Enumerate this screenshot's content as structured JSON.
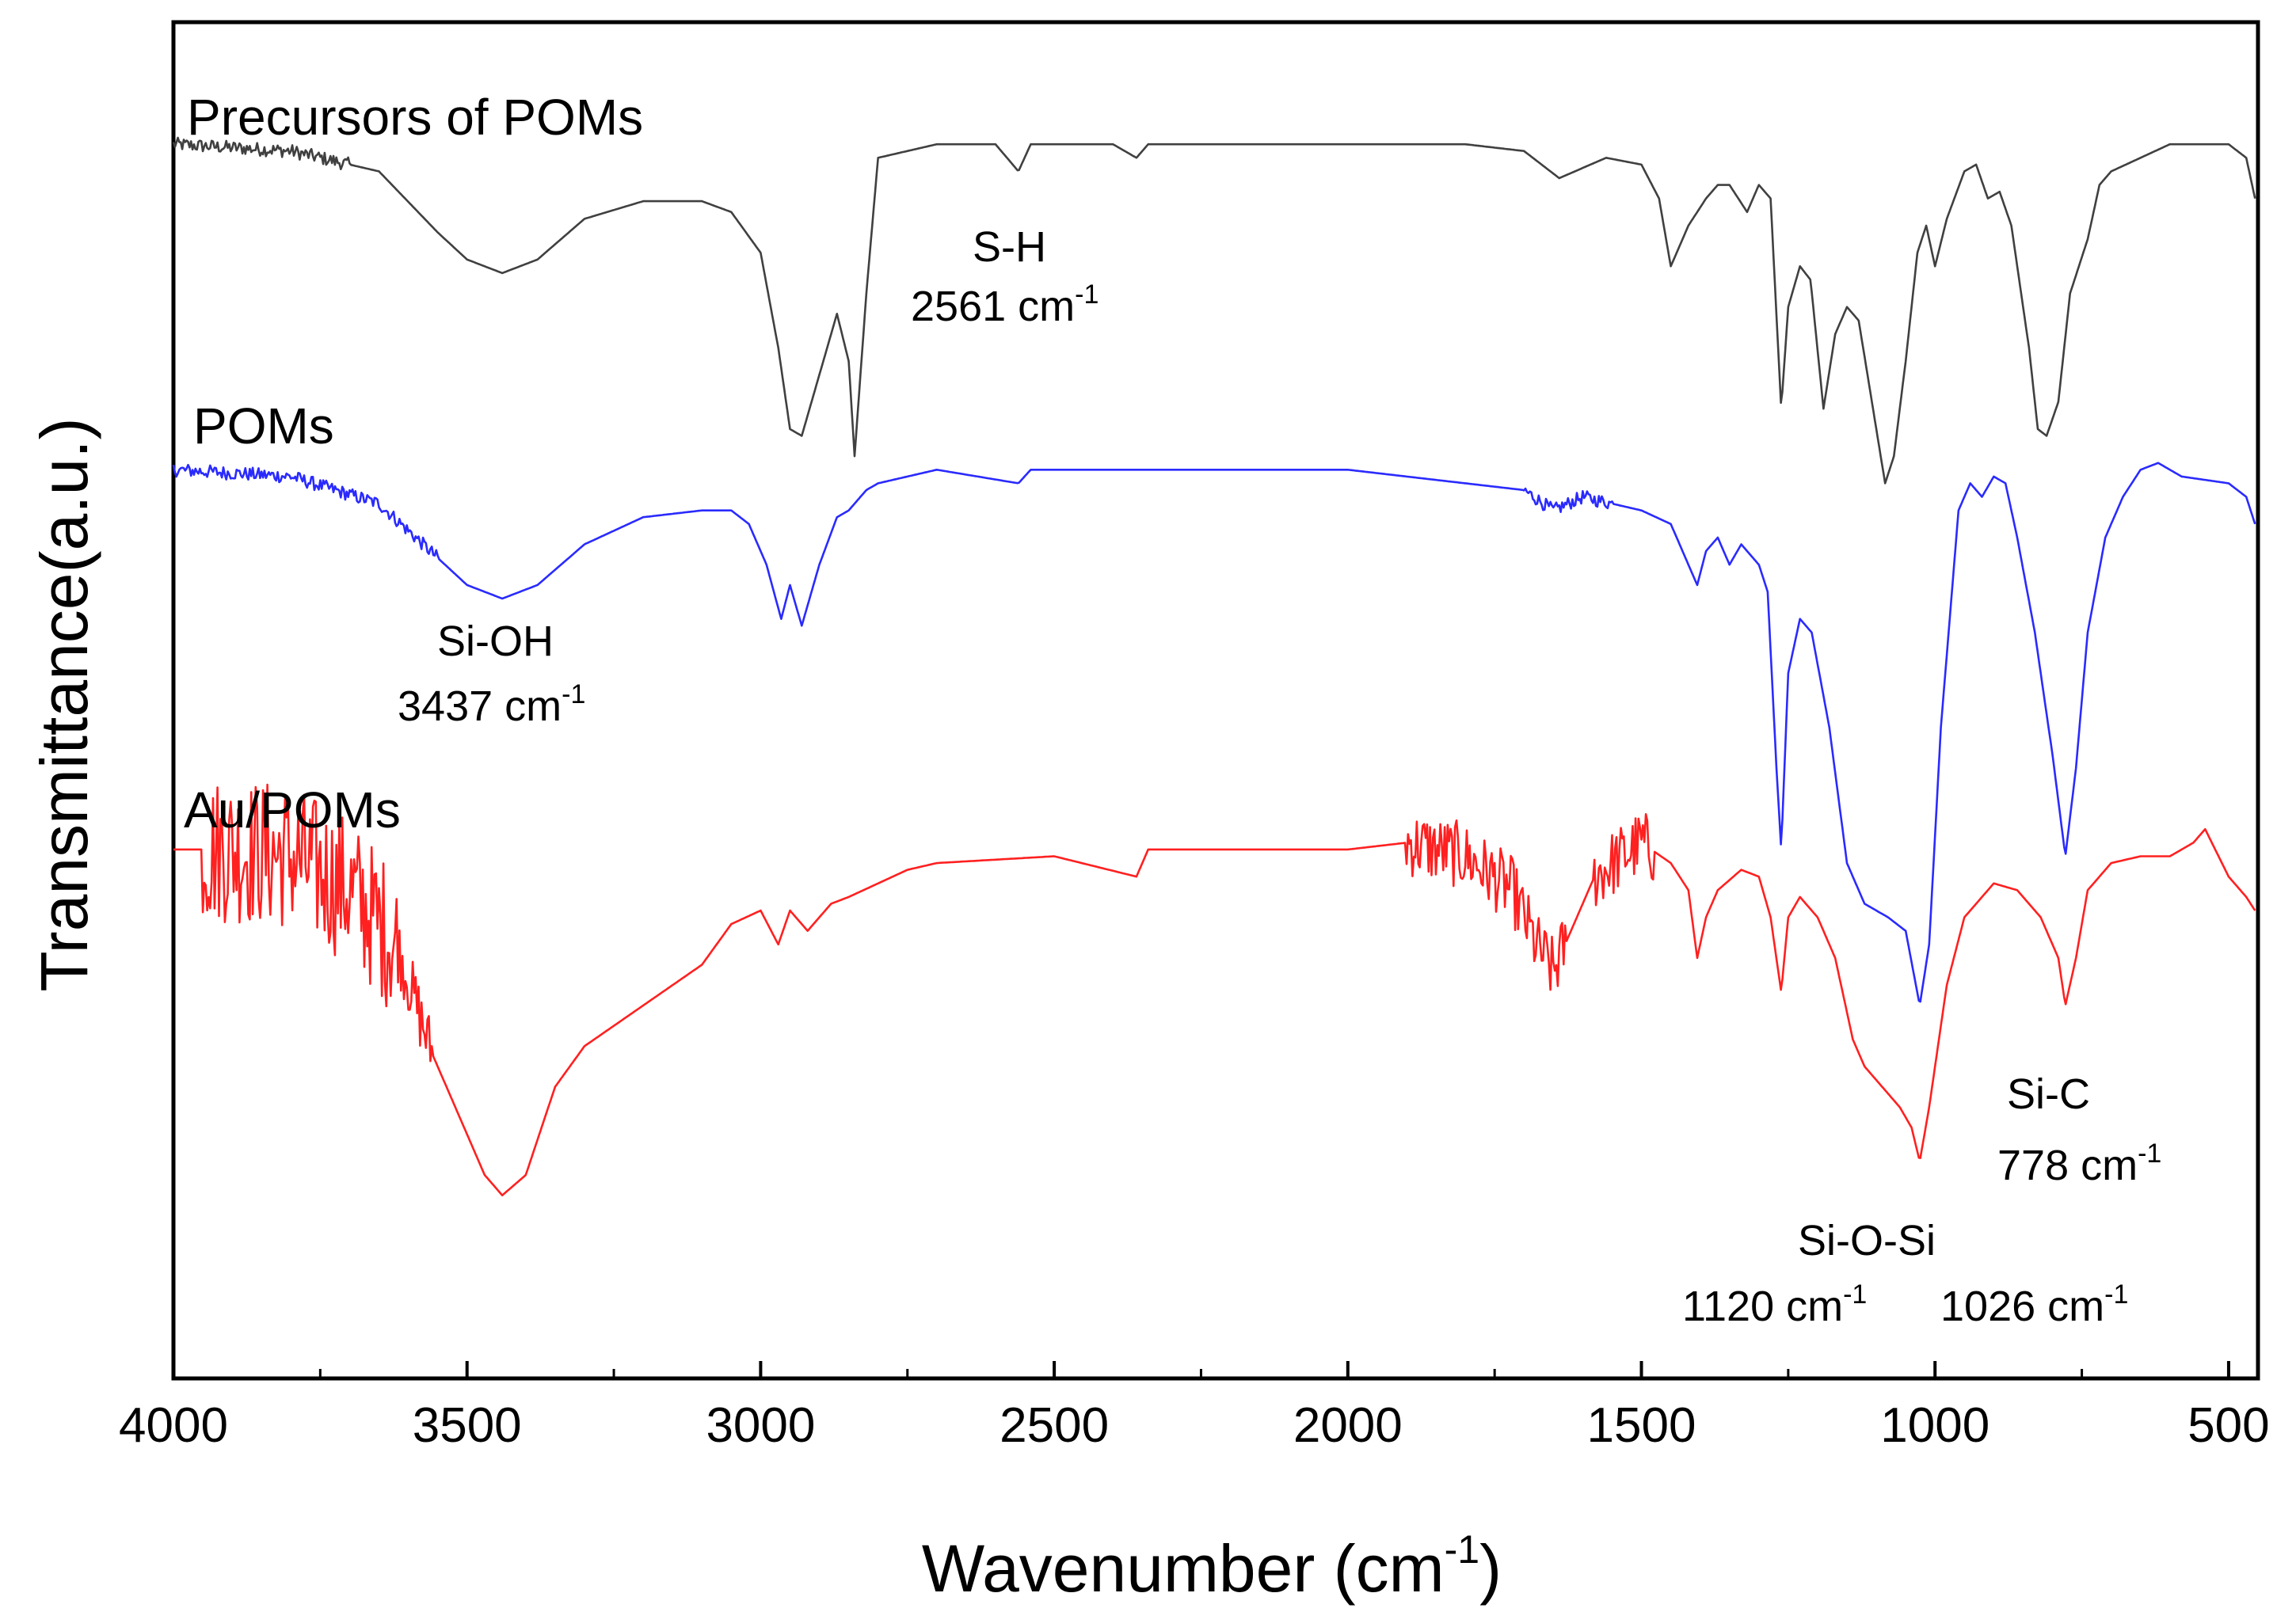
{
  "chart_data": {
    "type": "line",
    "xlabel": "Wavenumber (cm",
    "xlabel_sup": "-1",
    "xlabel_close": ")",
    "ylabel": "Transmittance(a.u.)",
    "xlim": [
      4000,
      450
    ],
    "x_reversed": true,
    "ylim": [
      0,
      10
    ],
    "yticks_shown": false,
    "xticks": [
      "4000",
      "3500",
      "3000",
      "2500",
      "2000",
      "1500",
      "1000",
      "500"
    ],
    "grid": false,
    "series": [
      {
        "name": "Precursors of POMs",
        "color": "#404040",
        "noise": [
          [
            4000,
            3700,
            0.05
          ]
        ],
        "points": [
          [
            4000,
            9.1
          ],
          [
            3800,
            9.05
          ],
          [
            3650,
            8.9
          ],
          [
            3550,
            8.45
          ],
          [
            3500,
            8.25
          ],
          [
            3440,
            8.15
          ],
          [
            3380,
            8.25
          ],
          [
            3300,
            8.55
          ],
          [
            3200,
            8.68
          ],
          [
            3100,
            8.68
          ],
          [
            3050,
            8.6
          ],
          [
            3000,
            8.3
          ],
          [
            2970,
            7.6
          ],
          [
            2950,
            7.0
          ],
          [
            2930,
            6.95
          ],
          [
            2900,
            7.4
          ],
          [
            2870,
            7.85
          ],
          [
            2850,
            7.5
          ],
          [
            2840,
            6.8
          ],
          [
            2820,
            8.0
          ],
          [
            2800,
            9.0
          ],
          [
            2700,
            9.1
          ],
          [
            2600,
            9.1
          ],
          [
            2561,
            8.9
          ],
          [
            2540,
            9.1
          ],
          [
            2400,
            9.1
          ],
          [
            2360,
            9.0
          ],
          [
            2340,
            9.1
          ],
          [
            2000,
            9.1
          ],
          [
            1800,
            9.1
          ],
          [
            1700,
            9.05
          ],
          [
            1640,
            8.85
          ],
          [
            1560,
            9.0
          ],
          [
            1500,
            8.95
          ],
          [
            1470,
            8.7
          ],
          [
            1450,
            8.2
          ],
          [
            1420,
            8.5
          ],
          [
            1390,
            8.7
          ],
          [
            1370,
            8.8
          ],
          [
            1350,
            8.8
          ],
          [
            1320,
            8.6
          ],
          [
            1300,
            8.8
          ],
          [
            1280,
            8.7
          ],
          [
            1262,
            7.15
          ],
          [
            1250,
            7.9
          ],
          [
            1230,
            8.2
          ],
          [
            1212,
            8.1
          ],
          [
            1190,
            7.15
          ],
          [
            1170,
            7.7
          ],
          [
            1150,
            7.9
          ],
          [
            1130,
            7.8
          ],
          [
            1100,
            7.0
          ],
          [
            1085,
            6.6
          ],
          [
            1070,
            6.8
          ],
          [
            1050,
            7.5
          ],
          [
            1030,
            8.3
          ],
          [
            1015,
            8.5
          ],
          [
            1000,
            8.2
          ],
          [
            980,
            8.55
          ],
          [
            950,
            8.9
          ],
          [
            930,
            8.95
          ],
          [
            910,
            8.7
          ],
          [
            890,
            8.75
          ],
          [
            870,
            8.5
          ],
          [
            840,
            7.6
          ],
          [
            825,
            7.0
          ],
          [
            810,
            6.95
          ],
          [
            790,
            7.2
          ],
          [
            770,
            8.0
          ],
          [
            740,
            8.4
          ],
          [
            720,
            8.8
          ],
          [
            700,
            8.9
          ],
          [
            650,
            9.0
          ],
          [
            600,
            9.1
          ],
          [
            500,
            9.1
          ],
          [
            470,
            9.0
          ],
          [
            455,
            8.7
          ]
        ]
      },
      {
        "name": "POMs",
        "color": "#2a2aff",
        "noise": [
          [
            4000,
            3550,
            0.05
          ],
          [
            1700,
            1550,
            0.05
          ]
        ],
        "points": [
          [
            4000,
            6.7
          ],
          [
            3800,
            6.65
          ],
          [
            3650,
            6.45
          ],
          [
            3550,
            6.05
          ],
          [
            3500,
            5.85
          ],
          [
            3440,
            5.75
          ],
          [
            3380,
            5.85
          ],
          [
            3300,
            6.15
          ],
          [
            3200,
            6.35
          ],
          [
            3100,
            6.4
          ],
          [
            3050,
            6.4
          ],
          [
            3020,
            6.3
          ],
          [
            2990,
            6.0
          ],
          [
            2965,
            5.6
          ],
          [
            2950,
            5.85
          ],
          [
            2930,
            5.55
          ],
          [
            2900,
            6.0
          ],
          [
            2870,
            6.35
          ],
          [
            2850,
            6.4
          ],
          [
            2820,
            6.55
          ],
          [
            2800,
            6.6
          ],
          [
            2700,
            6.7
          ],
          [
            2561,
            6.6
          ],
          [
            2540,
            6.7
          ],
          [
            2360,
            6.7
          ],
          [
            2000,
            6.7
          ],
          [
            1800,
            6.6
          ],
          [
            1700,
            6.55
          ],
          [
            1650,
            6.4
          ],
          [
            1600,
            6.5
          ],
          [
            1500,
            6.4
          ],
          [
            1450,
            6.3
          ],
          [
            1420,
            6.0
          ],
          [
            1405,
            5.85
          ],
          [
            1390,
            6.1
          ],
          [
            1370,
            6.2
          ],
          [
            1350,
            6.0
          ],
          [
            1330,
            6.15
          ],
          [
            1300,
            6.0
          ],
          [
            1285,
            5.8
          ],
          [
            1270,
            4.5
          ],
          [
            1262,
            3.9
          ],
          [
            1250,
            5.2
          ],
          [
            1230,
            5.6
          ],
          [
            1210,
            5.5
          ],
          [
            1180,
            4.8
          ],
          [
            1150,
            3.8
          ],
          [
            1120,
            3.5
          ],
          [
            1080,
            3.4
          ],
          [
            1050,
            3.3
          ],
          [
            1026,
            2.75
          ],
          [
            1010,
            3.2
          ],
          [
            990,
            4.8
          ],
          [
            960,
            6.4
          ],
          [
            940,
            6.6
          ],
          [
            920,
            6.5
          ],
          [
            900,
            6.65
          ],
          [
            880,
            6.6
          ],
          [
            860,
            6.2
          ],
          [
            830,
            5.5
          ],
          [
            800,
            4.6
          ],
          [
            778,
            3.85
          ],
          [
            760,
            4.5
          ],
          [
            740,
            5.5
          ],
          [
            710,
            6.2
          ],
          [
            680,
            6.5
          ],
          [
            650,
            6.7
          ],
          [
            620,
            6.75
          ],
          [
            580,
            6.65
          ],
          [
            500,
            6.6
          ],
          [
            470,
            6.5
          ],
          [
            455,
            6.3
          ]
        ]
      },
      {
        "name": "Au/POMs",
        "color": "#ff2020",
        "noise": [
          [
            3950,
            3620,
            0.55
          ],
          [
            3620,
            3560,
            0.25
          ],
          [
            1900,
            1630,
            0.25
          ],
          [
            1580,
            1480,
            0.25
          ]
        ],
        "points": [
          [
            4000,
            3.9
          ],
          [
            3900,
            3.9
          ],
          [
            3800,
            3.85
          ],
          [
            3700,
            3.6
          ],
          [
            3620,
            3.2
          ],
          [
            3560,
            2.4
          ],
          [
            3500,
            1.8
          ],
          [
            3470,
            1.5
          ],
          [
            3440,
            1.35
          ],
          [
            3400,
            1.5
          ],
          [
            3350,
            2.15
          ],
          [
            3300,
            2.45
          ],
          [
            3200,
            2.75
          ],
          [
            3100,
            3.05
          ],
          [
            3050,
            3.35
          ],
          [
            3000,
            3.45
          ],
          [
            2970,
            3.2
          ],
          [
            2950,
            3.45
          ],
          [
            2920,
            3.3
          ],
          [
            2880,
            3.5
          ],
          [
            2850,
            3.55
          ],
          [
            2800,
            3.65
          ],
          [
            2750,
            3.75
          ],
          [
            2700,
            3.8
          ],
          [
            2500,
            3.85
          ],
          [
            2360,
            3.7
          ],
          [
            2340,
            3.9
          ],
          [
            2000,
            3.9
          ],
          [
            1900,
            3.95
          ],
          [
            1800,
            3.85
          ],
          [
            1720,
            3.6
          ],
          [
            1680,
            3.2
          ],
          [
            1650,
            3.0
          ],
          [
            1620,
            3.3
          ],
          [
            1580,
            3.7
          ],
          [
            1500,
            3.95
          ],
          [
            1450,
            3.8
          ],
          [
            1420,
            3.6
          ],
          [
            1405,
            3.1
          ],
          [
            1390,
            3.4
          ],
          [
            1370,
            3.6
          ],
          [
            1330,
            3.75
          ],
          [
            1300,
            3.7
          ],
          [
            1280,
            3.4
          ],
          [
            1262,
            2.85
          ],
          [
            1250,
            3.4
          ],
          [
            1230,
            3.55
          ],
          [
            1200,
            3.4
          ],
          [
            1170,
            3.1
          ],
          [
            1140,
            2.5
          ],
          [
            1120,
            2.3
          ],
          [
            1100,
            2.2
          ],
          [
            1060,
            2.0
          ],
          [
            1040,
            1.85
          ],
          [
            1026,
            1.6
          ],
          [
            1010,
            2.0
          ],
          [
            980,
            2.9
          ],
          [
            950,
            3.4
          ],
          [
            900,
            3.65
          ],
          [
            860,
            3.6
          ],
          [
            820,
            3.4
          ],
          [
            790,
            3.1
          ],
          [
            778,
            2.75
          ],
          [
            760,
            3.1
          ],
          [
            740,
            3.6
          ],
          [
            700,
            3.8
          ],
          [
            650,
            3.85
          ],
          [
            600,
            3.85
          ],
          [
            560,
            3.95
          ],
          [
            540,
            4.05
          ],
          [
            500,
            3.7
          ],
          [
            470,
            3.55
          ],
          [
            455,
            3.45
          ]
        ]
      }
    ],
    "annotations": [
      {
        "text": "S-H",
        "sub": "2561 cm",
        "sup": "-1"
      },
      {
        "text": "Si-OH",
        "sub": "3437 cm",
        "sup": "-1"
      },
      {
        "text": "Si-O-Si",
        "sub": "1120 cm",
        "sup": "-1",
        "sub2": "1026 cm",
        "sup2": "-1"
      },
      {
        "text": "Si-C",
        "sub": "778 cm",
        "sup": "-1"
      }
    ]
  }
}
